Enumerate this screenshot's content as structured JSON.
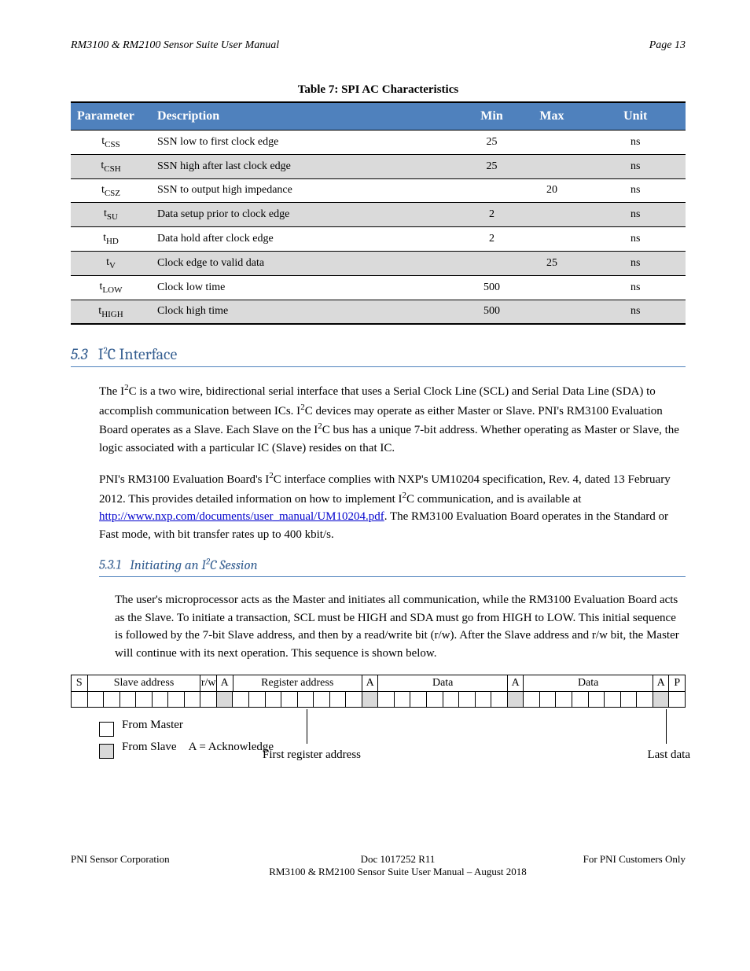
{
  "header": {
    "title": "RM3100 & RM2100 Sensor Suite User Manual",
    "page": "Page 13"
  },
  "table7": {
    "caption": "Table 7: SPI AC Characteristics",
    "columns": [
      "Parameter",
      "Description",
      "Min",
      "Max",
      "Unit"
    ],
    "rows": [
      [
        "t_CSS",
        "SSN low to first clock edge",
        "25",
        "",
        "ns"
      ],
      [
        "t_CSH",
        "SSN high after last clock edge",
        "25",
        "",
        "ns"
      ],
      [
        "t_CSZ",
        "SSN to output high impedance",
        "",
        "20",
        "ns"
      ],
      [
        "t_SU",
        "Data setup prior to clock edge",
        "2",
        "",
        "ns"
      ],
      [
        "t_HD",
        "Data hold after clock edge",
        "2",
        "",
        "ns"
      ],
      [
        "t_V",
        "Clock edge to valid data",
        "",
        "25",
        "ns"
      ],
      [
        "t_LOW",
        "Clock low time",
        "500",
        "",
        "ns"
      ],
      [
        "t_HIGH",
        "Clock high time",
        "500",
        "",
        "ns"
      ]
    ]
  },
  "section53": {
    "number": "5.3",
    "title": "I²C Interface",
    "p1": "The I²C is a two wire, bidirectional serial interface that uses a Serial Clock Line (SCL) and Serial Data Line (SDA) to accomplish communication between ICs. I²C devices may operate as either Master or Slave. PNI's RM3100 Evaluation Board operates as a Slave. Each Slave on the I²C bus has a unique 7-bit address. Whether operating as Master or Slave, the logic associated with a particular IC (Slave) resides on that IC.",
    "p2a": "PNI's RM3100 Evaluation Board's I²C interface complies with NXP's UM10204 specification, Rev. 4, dated 13 February 2012. This provides detailed information on how to implement I²C communication, and is available at ",
    "link": "http://www.nxp.com/documents/user_manual/UM10204.pdf",
    "p2b": ". The RM3100 Evaluation Board operates in the Standard or Fast mode, with bit transfer rates up to 400 kbit/s."
  },
  "section531": {
    "number": "5.3.1",
    "title": "Initiating an I²C Session",
    "p1": "The user's microprocessor acts as the Master and initiates all communication, while the RM3100 Evaluation Board acts as the Slave. To initiate a transaction, SCL must be HIGH and SDA must go from HIGH to LOW. This initial sequence is followed by the 7-bit Slave address, and then by a read/write bit (r/w). After the Slave address and r/w bit, the Master will continue with its next operation. This sequence is shown below.",
    "bitHeaderLabels": [
      "S",
      "Slave address",
      "r/w",
      "A",
      "Register address",
      "A",
      "Data",
      "A",
      "Data",
      "A",
      "P"
    ],
    "masterLabel": "From Master",
    "slaveLabel": "From Slave"
  },
  "footer": {
    "left": "PNI Sensor Corporation",
    "centerDoc": "Doc 1017252 R11",
    "rightConf": "For PNI Customers Only",
    "sub": "RM3100 & RM2100 Sensor Suite User Manual – August 2018"
  },
  "colors": {
    "headerBlue": "#4f81bd",
    "rowGrey": "#dadada",
    "headingBlue": "#365f91"
  }
}
